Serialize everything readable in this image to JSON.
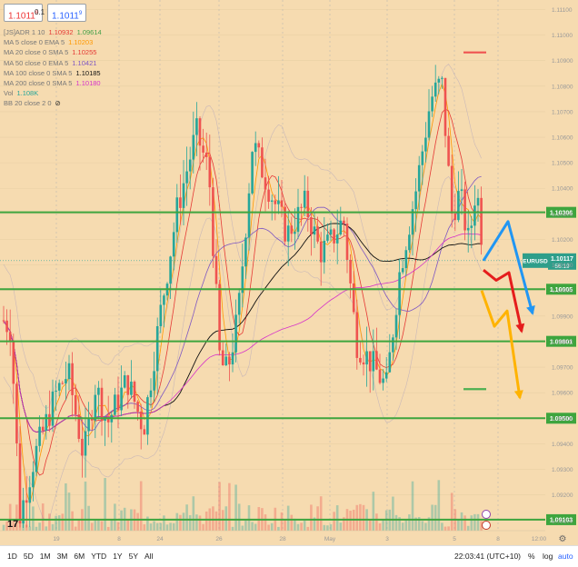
{
  "header": {
    "sell_price": "1.1011",
    "sell_sup": "8",
    "spread": "0.1",
    "buy_price": "1.1011",
    "buy_sup": "9"
  },
  "legend": [
    {
      "label": "[JS]ADR 1 10",
      "values": [
        {
          "v": "1.10932",
          "color": "#e53935"
        },
        {
          "v": "1.09614",
          "color": "#43a047"
        }
      ]
    },
    {
      "label": "MA 5 close 0 EMA 5",
      "values": [
        {
          "v": "1.10203",
          "color": "#ff9800"
        }
      ]
    },
    {
      "label": "MA 20 close 0 SMA 5",
      "values": [
        {
          "v": "1.10255",
          "color": "#e53935"
        }
      ]
    },
    {
      "label": "MA 50 close 0 EMA 5",
      "values": [
        {
          "v": "1.10421",
          "color": "#7e57c2"
        }
      ]
    },
    {
      "label": "MA 100 close 0 SMA 5",
      "values": [
        {
          "v": "1.10185",
          "color": "#111111"
        }
      ]
    },
    {
      "label": "MA 200 close 0 SMA 5",
      "values": [
        {
          "v": "1.10180",
          "color": "#d633c9"
        }
      ]
    },
    {
      "label": "Vol",
      "values": [
        {
          "v": "1.108K",
          "color": "#26a69a"
        }
      ]
    },
    {
      "label": "BB 20 close 2 0",
      "values": []
    }
  ],
  "colors": {
    "background": "#f6dbb0",
    "up_candle": "#26a69a",
    "down_candle": "#ef5350",
    "support_line": "#3ea53e",
    "arrow_blue": "#2196f3",
    "arrow_red": "#e51c1c",
    "arrow_orange": "#ffb300",
    "price_label": "#2e9e8a"
  },
  "chart_data": {
    "type": "candlestick",
    "symbol": "EURUSD",
    "y_ticks": [
      "1.11100",
      "1.11000",
      "1.10900",
      "1.10800",
      "1.10700",
      "1.10600",
      "1.10500",
      "1.10400",
      "1.10300",
      "1.10200",
      "1.10100",
      "1.10000",
      "1.09900",
      "1.09800",
      "1.09700",
      "1.09600",
      "1.09500",
      "1.09400",
      "1.09300",
      "1.09200",
      "1.09100"
    ],
    "ylim": [
      1.0906,
      1.1113
    ],
    "x_ticks": [
      "19",
      "8",
      "24",
      "26",
      "28",
      "May",
      "3",
      "5",
      "8",
      "12:00"
    ],
    "horizontal_levels": [
      {
        "label": "1.10306",
        "value": 1.10306
      },
      {
        "label": "1.10005",
        "value": 1.10005
      },
      {
        "label": "1.09801",
        "value": 1.09801
      },
      {
        "label": "1.09500",
        "value": 1.095
      },
      {
        "label": "1.09103",
        "value": 1.09103
      }
    ],
    "adr_high": 1.10932,
    "adr_low": 1.09614,
    "current_price": {
      "symbol": "EURUSD",
      "price": "1.10117",
      "countdown": "56:19",
      "value": 1.10117
    },
    "projection_arrows": [
      {
        "color": "blue",
        "path": [
          [
            1.10117,
            0
          ],
          [
            1.1027,
            1
          ],
          [
            1.0991,
            2
          ]
        ]
      },
      {
        "color": "red",
        "path": [
          [
            1.1008,
            0
          ],
          [
            1.1004,
            1
          ],
          [
            1.1007,
            2
          ],
          [
            1.0984,
            3
          ]
        ]
      },
      {
        "color": "orange",
        "path": [
          [
            1.1,
            0
          ],
          [
            1.0986,
            1
          ],
          [
            1.0992,
            2
          ],
          [
            1.0958,
            3
          ]
        ]
      }
    ],
    "volume_max": 1108
  },
  "toolbar": {
    "ranges": [
      "1D",
      "5D",
      "1M",
      "3M",
      "6M",
      "YTD",
      "1Y",
      "5Y",
      "All"
    ],
    "time": "22:03:41 (UTC+10)",
    "percent": "%",
    "log": "log",
    "auto": "auto"
  }
}
